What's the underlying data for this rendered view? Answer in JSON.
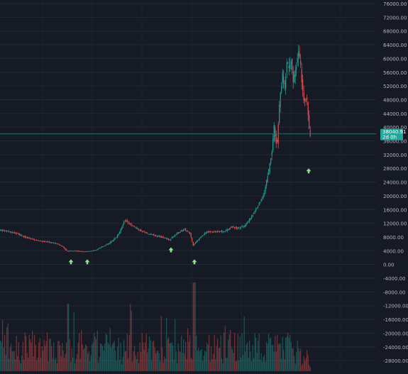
{
  "colors": {
    "background": "#161a25",
    "grid": "#242837",
    "axis_text": "#b2b5be",
    "up": "#26a69a",
    "down": "#ef5350",
    "signal_arrow": "#8fe388",
    "price_tag": "#26a69a",
    "price_tag_text": "#ffffff"
  },
  "price_tag": {
    "price": "38040.91",
    "countdown": "2d 0h"
  },
  "chart_data": {
    "type": "candlestick",
    "y_axis": {
      "position": "right",
      "scale": "linear",
      "range": [
        -30000,
        77000
      ],
      "tick_labels": [
        "76000.00",
        "72000.00",
        "68000.00",
        "64000.00",
        "60000.00",
        "56000.00",
        "52000.00",
        "48000.00",
        "44000.00",
        "40000.00",
        "36000.00",
        "32000.00",
        "28000.00",
        "24000.00",
        "20000.00",
        "16000.00",
        "12000.00",
        "8000.00",
        "4000.00",
        "0.00",
        "-4000.00",
        "-8000.00",
        "-12000.00",
        "-16000.00",
        "-20000.00",
        "-24000.00",
        "-28000.00"
      ],
      "tick_values": [
        76000,
        72000,
        68000,
        64000,
        60000,
        56000,
        52000,
        48000,
        44000,
        40000,
        36000,
        32000,
        28000,
        24000,
        20000,
        16000,
        12000,
        8000,
        4000,
        0,
        -4000,
        -8000,
        -12000,
        -16000,
        -20000,
        -24000,
        -28000
      ]
    },
    "grid": true,
    "current_price": 38040.91,
    "price_path_anchors": [
      [
        0,
        10000
      ],
      [
        15,
        9500
      ],
      [
        25,
        9000
      ],
      [
        40,
        7700
      ],
      [
        55,
        6900
      ],
      [
        70,
        6500
      ],
      [
        80,
        6100
      ],
      [
        88,
        5400
      ],
      [
        95,
        3900
      ],
      [
        105,
        4000
      ],
      [
        120,
        3700
      ],
      [
        135,
        4100
      ],
      [
        145,
        5200
      ],
      [
        155,
        6200
      ],
      [
        165,
        8000
      ],
      [
        172,
        10500
      ],
      [
        176,
        13000
      ],
      [
        182,
        12000
      ],
      [
        195,
        10300
      ],
      [
        210,
        8900
      ],
      [
        225,
        8200
      ],
      [
        240,
        7200
      ],
      [
        250,
        9000
      ],
      [
        260,
        10300
      ],
      [
        268,
        9300
      ],
      [
        273,
        5500
      ],
      [
        276,
        6400
      ],
      [
        282,
        7600
      ],
      [
        292,
        9500
      ],
      [
        305,
        9500
      ],
      [
        318,
        9700
      ],
      [
        328,
        11000
      ],
      [
        336,
        10500
      ],
      [
        345,
        11200
      ],
      [
        352,
        13000
      ],
      [
        360,
        15500
      ],
      [
        368,
        18500
      ],
      [
        374,
        21500
      ],
      [
        379,
        27000
      ],
      [
        384,
        33000
      ],
      [
        387,
        40000
      ],
      [
        391,
        34000
      ],
      [
        395,
        48000
      ],
      [
        399,
        55000
      ],
      [
        402,
        52000
      ],
      [
        405,
        58500
      ],
      [
        408,
        57000
      ],
      [
        411,
        59000
      ],
      [
        414,
        54000
      ],
      [
        418,
        57000
      ],
      [
        421,
        63000
      ],
      [
        424,
        59000
      ],
      [
        427,
        51000
      ],
      [
        430,
        47000
      ],
      [
        433,
        49000
      ],
      [
        435,
        43000
      ],
      [
        437,
        38040
      ]
    ],
    "down_segments": [
      [
        176,
        183
      ],
      [
        268,
        274
      ],
      [
        388,
        392
      ],
      [
        423,
        437
      ]
    ],
    "volume_series": "per-candle bars, up and down colored, heights read relative to the bottom band",
    "signals": [
      {
        "type": "buy-arrow",
        "x": 100,
        "price": 1500
      },
      {
        "type": "buy-arrow",
        "x": 123,
        "price": 1500
      },
      {
        "type": "buy-arrow",
        "x": 241,
        "price": 5000
      },
      {
        "type": "buy-arrow",
        "x": 274,
        "price": 1500
      },
      {
        "type": "buy-arrow",
        "x": 435,
        "price": 28000
      }
    ]
  }
}
